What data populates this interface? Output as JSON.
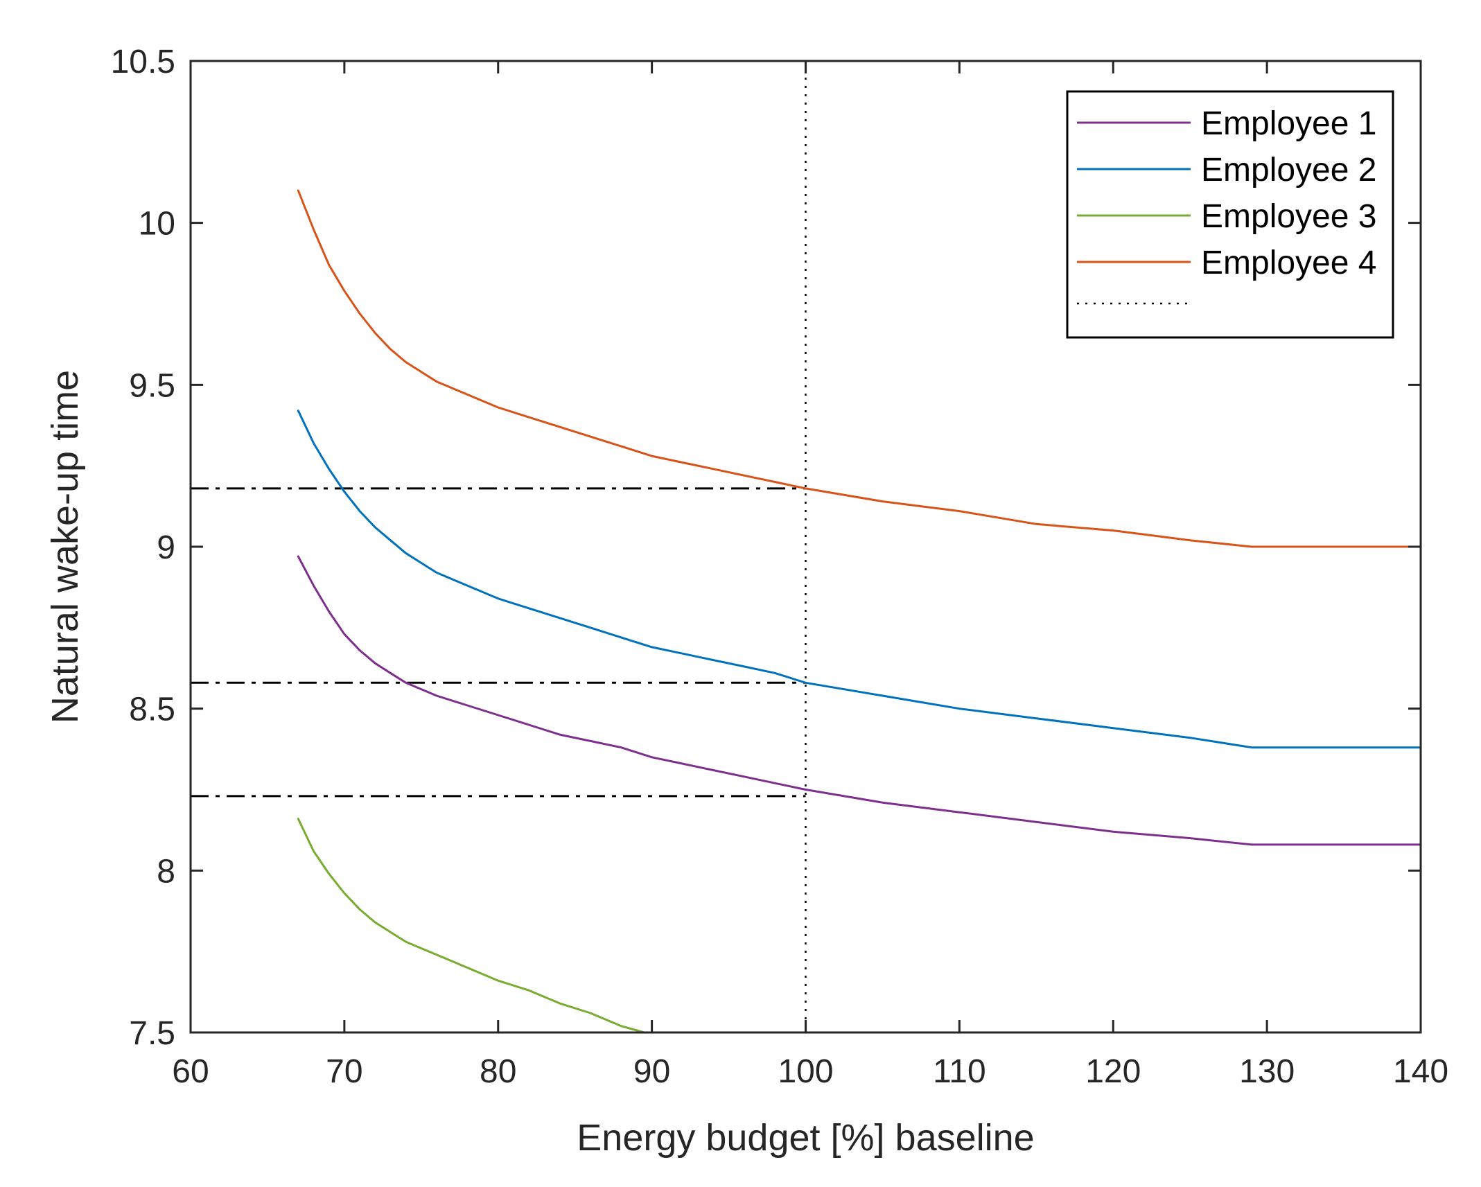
{
  "chart_data": {
    "type": "line",
    "title": "",
    "xlabel": "Energy budget [%] baseline",
    "ylabel": "Natural wake-up time",
    "xlim": [
      60,
      140
    ],
    "ylim": [
      7.5,
      10.5
    ],
    "xticks": [
      60,
      70,
      80,
      90,
      100,
      110,
      120,
      130,
      140
    ],
    "yticks": [
      7.5,
      8,
      8.5,
      9,
      9.5,
      10,
      10.5
    ],
    "xtick_labels": [
      "60",
      "70",
      "80",
      "90",
      "100",
      "110",
      "120",
      "130",
      "140"
    ],
    "ytick_labels": [
      "7.5",
      "8",
      "8.5",
      "9",
      "9.5",
      "10",
      "10.5"
    ],
    "grid": false,
    "legend_position": "top-right",
    "series": [
      {
        "name": "Employee 1",
        "color": "#7E2F8E",
        "line_style": "solid",
        "x": [
          67,
          68,
          69,
          70,
          71,
          72,
          73,
          74,
          75,
          76,
          78,
          80,
          82,
          84,
          86,
          88,
          90,
          92,
          94,
          96,
          98,
          100,
          105,
          110,
          115,
          120,
          125,
          129,
          135,
          140
        ],
        "y": [
          8.97,
          8.88,
          8.8,
          8.73,
          8.68,
          8.64,
          8.61,
          8.58,
          8.56,
          8.54,
          8.51,
          8.48,
          8.45,
          8.42,
          8.4,
          8.38,
          8.35,
          8.33,
          8.31,
          8.29,
          8.27,
          8.25,
          8.21,
          8.18,
          8.15,
          8.12,
          8.1,
          8.08,
          8.08,
          8.08
        ]
      },
      {
        "name": "Employee 2",
        "color": "#0072BD",
        "line_style": "solid",
        "x": [
          67,
          68,
          69,
          70,
          71,
          72,
          73,
          74,
          75,
          76,
          78,
          80,
          82,
          84,
          86,
          88,
          90,
          92,
          94,
          96,
          98,
          100,
          105,
          110,
          115,
          120,
          125,
          129,
          135,
          140
        ],
        "y": [
          9.42,
          9.32,
          9.24,
          9.17,
          9.11,
          9.06,
          9.02,
          8.98,
          8.95,
          8.92,
          8.88,
          8.84,
          8.81,
          8.78,
          8.75,
          8.72,
          8.69,
          8.67,
          8.65,
          8.63,
          8.61,
          8.58,
          8.54,
          8.5,
          8.47,
          8.44,
          8.41,
          8.38,
          8.38,
          8.38
        ]
      },
      {
        "name": "Employee 3",
        "color": "#77AC30",
        "line_style": "solid",
        "x": [
          67,
          68,
          69,
          70,
          71,
          72,
          73,
          74,
          75,
          76,
          78,
          80,
          82,
          84,
          86,
          88,
          89.5
        ],
        "y": [
          8.16,
          8.06,
          7.99,
          7.93,
          7.88,
          7.84,
          7.81,
          7.78,
          7.76,
          7.74,
          7.7,
          7.66,
          7.63,
          7.59,
          7.56,
          7.52,
          7.5
        ]
      },
      {
        "name": "Employee 4",
        "color": "#D95319",
        "line_style": "solid",
        "x": [
          67,
          68,
          69,
          70,
          71,
          72,
          73,
          74,
          75,
          76,
          78,
          80,
          82,
          84,
          86,
          88,
          90,
          92,
          94,
          96,
          98,
          100,
          105,
          110,
          115,
          120,
          125,
          129,
          135,
          140
        ],
        "y": [
          10.1,
          9.98,
          9.87,
          9.79,
          9.72,
          9.66,
          9.61,
          9.57,
          9.54,
          9.51,
          9.47,
          9.43,
          9.4,
          9.37,
          9.34,
          9.31,
          9.28,
          9.26,
          9.24,
          9.22,
          9.2,
          9.18,
          9.14,
          9.11,
          9.07,
          9.05,
          9.02,
          9.0,
          9.0,
          9.0
        ]
      }
    ],
    "reference_lines": [
      {
        "kind": "vertical",
        "x": 100,
        "style": "dotted",
        "color": "#000000",
        "in_legend": true,
        "legend_label": ""
      },
      {
        "kind": "horizontal",
        "y": 9.18,
        "x_from": 60,
        "x_to": 100,
        "style": "dashdot",
        "color": "#000000"
      },
      {
        "kind": "horizontal",
        "y": 8.58,
        "x_from": 60,
        "x_to": 100,
        "style": "dashdot",
        "color": "#000000"
      },
      {
        "kind": "horizontal",
        "y": 8.23,
        "x_from": 60,
        "x_to": 100,
        "style": "dashdot",
        "color": "#000000"
      }
    ]
  }
}
